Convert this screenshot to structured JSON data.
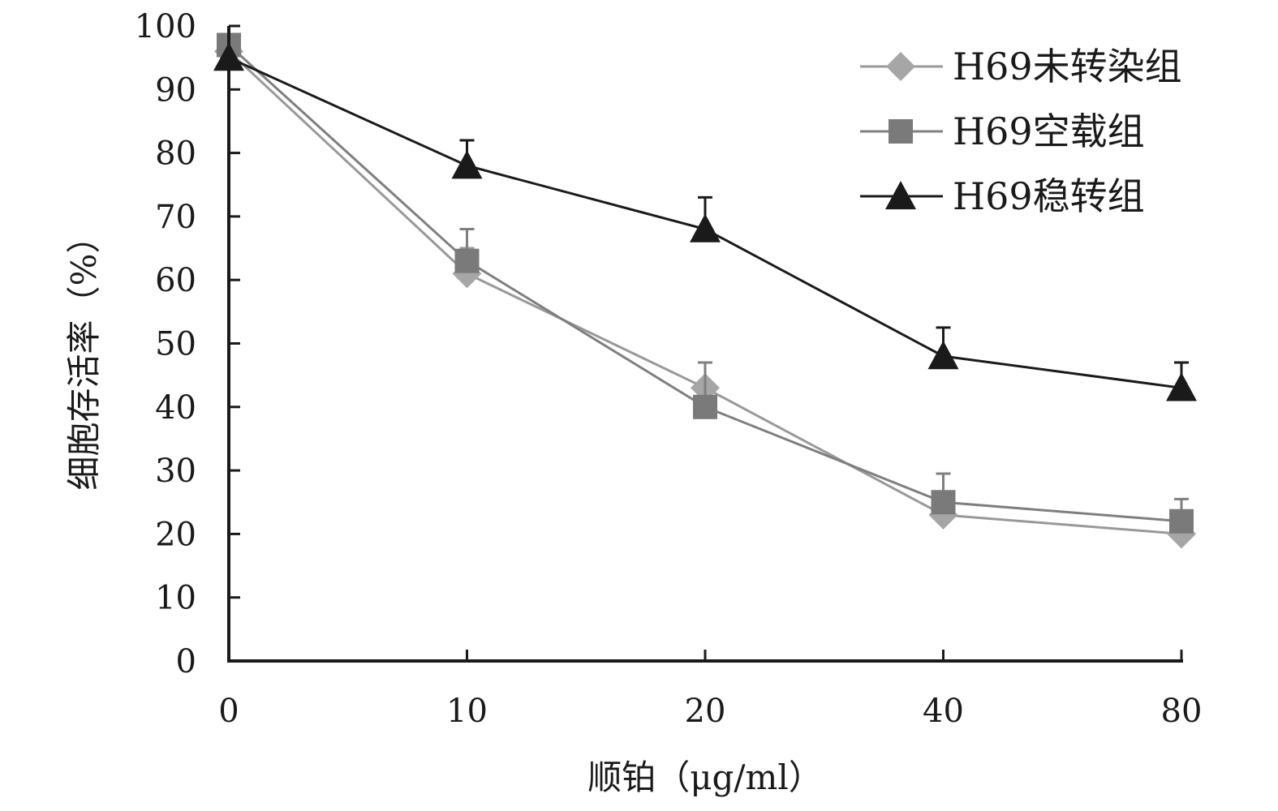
{
  "chart_data": {
    "type": "line",
    "xlabel": "顺铂（μg/ml）",
    "ylabel": "细胞存活率（%）",
    "categories": [
      "0",
      "10",
      "20",
      "40",
      "80"
    ],
    "ylim": [
      0,
      100
    ],
    "yticks": [
      0,
      10,
      20,
      30,
      40,
      50,
      60,
      70,
      80,
      90,
      100
    ],
    "grid": false,
    "legend_position": "top-right",
    "series": [
      {
        "name": "H69未转染组",
        "marker": "diamond",
        "color": "#999999",
        "marker_color": "#a6a6a6",
        "values": [
          96,
          61,
          43,
          23,
          20
        ],
        "error": [
          0,
          4,
          0,
          0,
          0
        ]
      },
      {
        "name": "H69空载组",
        "marker": "square",
        "color": "#7f7f7f",
        "marker_color": "#7a7a7a",
        "values": [
          97,
          63,
          40,
          25,
          22
        ],
        "error": [
          0,
          5,
          7,
          4.5,
          3.5
        ]
      },
      {
        "name": "H69稳转组",
        "marker": "triangle",
        "color": "#1a1a1a",
        "marker_color": "#1a1a1a",
        "values": [
          95,
          78,
          68,
          48,
          43
        ],
        "error": [
          0,
          4,
          5,
          4.5,
          4
        ]
      }
    ]
  }
}
